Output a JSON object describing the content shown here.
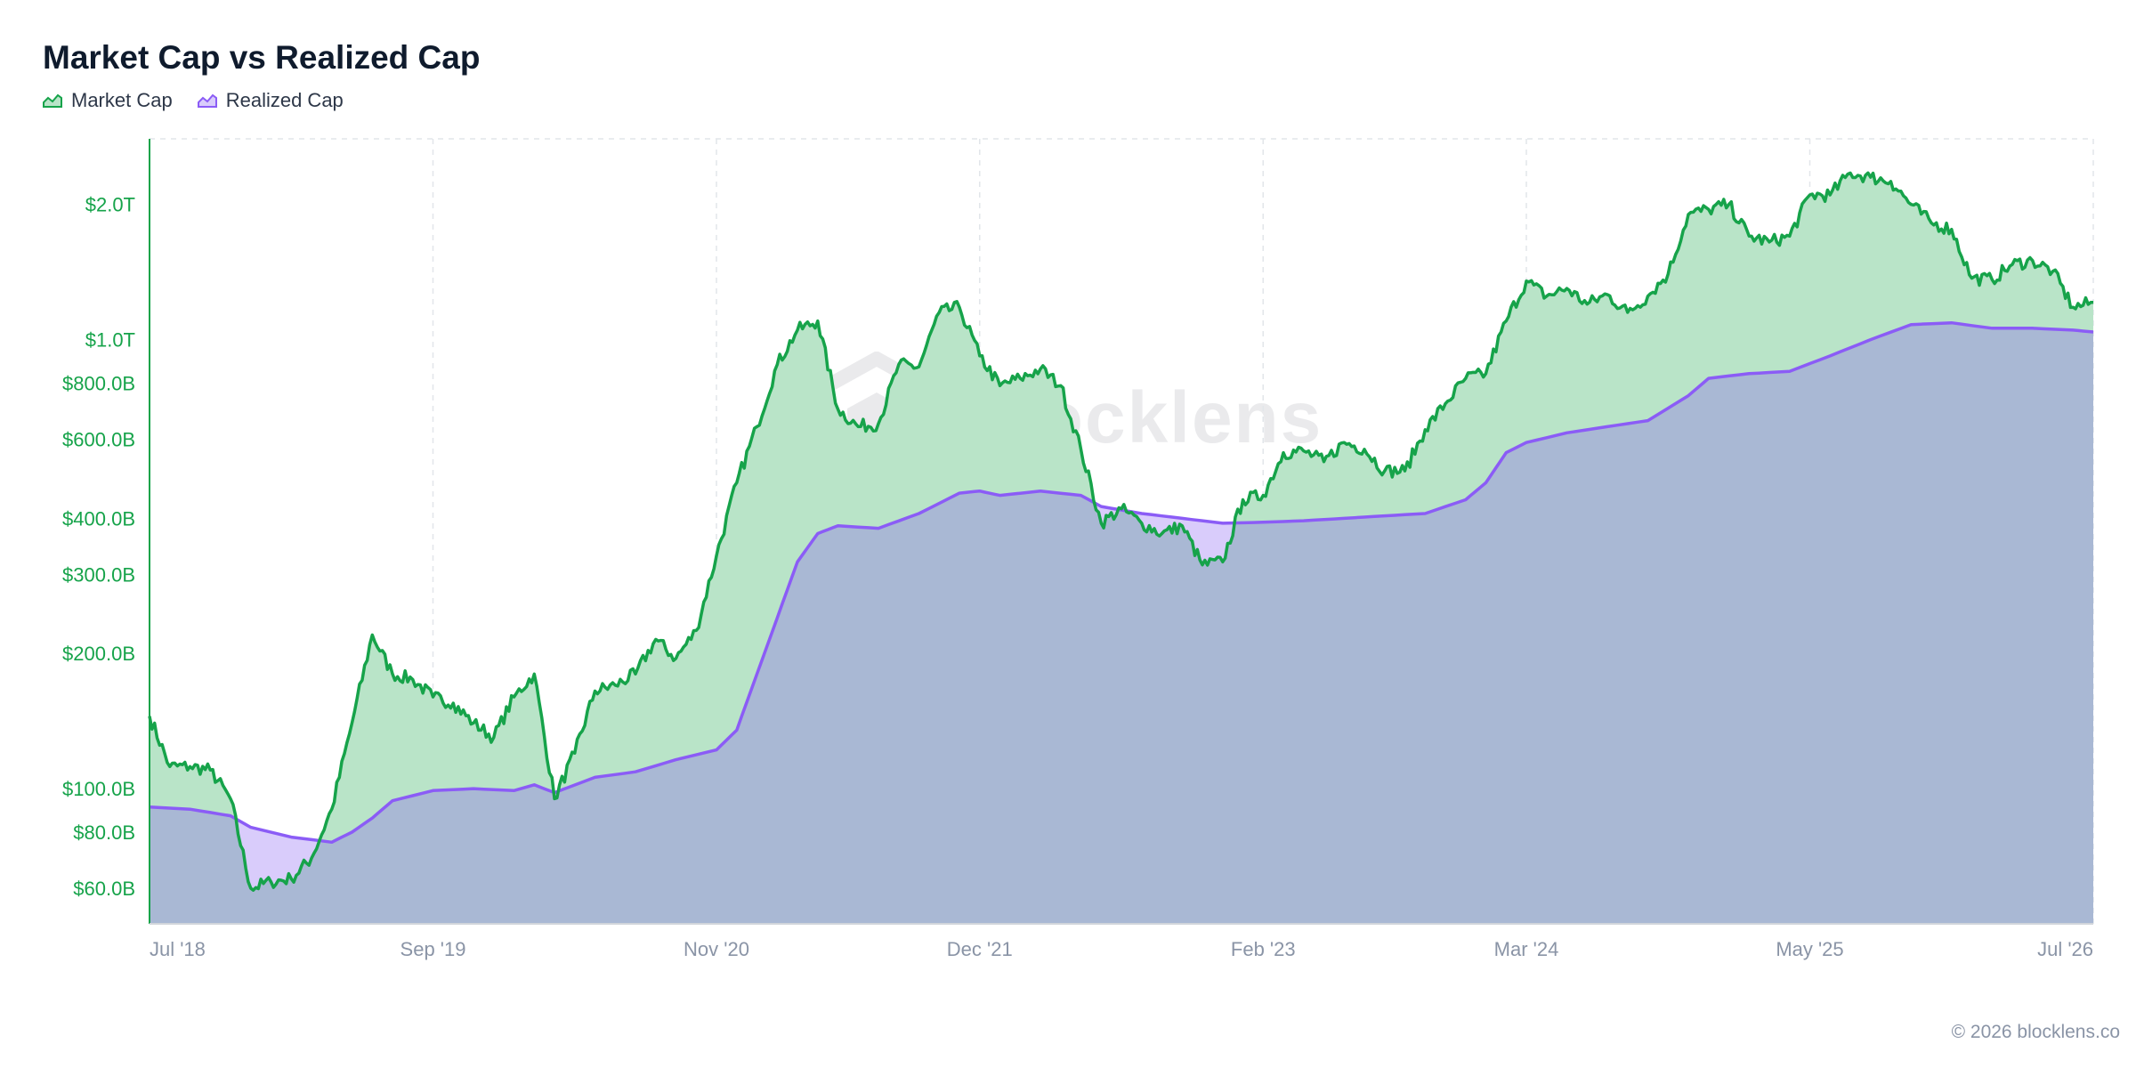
{
  "title": "Market Cap vs Realized Cap",
  "footer": "© 2026 blocklens.co",
  "watermark": "blocklens",
  "colors": {
    "market": "#16a34a",
    "market_fill": "#b9e4c8",
    "realized": "#8b5cf6",
    "realized_fill": "#d9ccfb",
    "overlap_fill": "#a9b8d4",
    "grid": "#e2e6ea"
  },
  "icons": {
    "legend_market": "area-chart-icon",
    "legend_realized": "area-chart-icon",
    "watermark": "hexagon-logo-icon"
  },
  "chart_data": {
    "type": "area",
    "title": "Market Cap vs Realized Cap",
    "y_scale": "log",
    "ylim": [
      50000000000,
      2800000000000
    ],
    "y_ticks": [
      {
        "value": 60000000000,
        "label": "$60.0B"
      },
      {
        "value": 80000000000,
        "label": "$80.0B"
      },
      {
        "value": 100000000000,
        "label": "$100.0B"
      },
      {
        "value": 200000000000,
        "label": "$200.0B"
      },
      {
        "value": 300000000000,
        "label": "$300.0B"
      },
      {
        "value": 400000000000,
        "label": "$400.0B"
      },
      {
        "value": 600000000000,
        "label": "$600.0B"
      },
      {
        "value": 800000000000,
        "label": "$800.0B"
      },
      {
        "value": 1000000000000,
        "label": "$1.0T"
      },
      {
        "value": 2000000000000,
        "label": "$2.0T"
      }
    ],
    "xlim": [
      "2018-07",
      "2026-07"
    ],
    "x_ticks": [
      {
        "value": "2018-07",
        "label": "Jul '18"
      },
      {
        "value": "2019-09",
        "label": "Sep '19"
      },
      {
        "value": "2020-11",
        "label": "Nov '20"
      },
      {
        "value": "2021-12",
        "label": "Dec '21"
      },
      {
        "value": "2023-02",
        "label": "Feb '23"
      },
      {
        "value": "2024-03",
        "label": "Mar '24"
      },
      {
        "value": "2025-05",
        "label": "May '25"
      },
      {
        "value": "2026-07",
        "label": "Jul '26"
      }
    ],
    "grid": true,
    "legend": "top-left",
    "series": [
      {
        "name": "Market Cap",
        "color": "#16a34a",
        "points": [
          [
            "2018-07",
            145
          ],
          [
            "2018-08",
            112
          ],
          [
            "2018-09",
            112
          ],
          [
            "2018-10",
            110
          ],
          [
            "2018-11",
            95
          ],
          [
            "2018-12",
            60
          ],
          [
            "2019-01",
            62
          ],
          [
            "2019-02",
            63
          ],
          [
            "2019-03",
            70
          ],
          [
            "2019-04",
            90
          ],
          [
            "2019-05",
            140
          ],
          [
            "2019-06",
            220
          ],
          [
            "2019-07",
            180
          ],
          [
            "2019-08",
            175
          ],
          [
            "2019-09",
            160
          ],
          [
            "2019-10",
            155
          ],
          [
            "2019-11",
            140
          ],
          [
            "2019-12",
            130
          ],
          [
            "2020-01",
            160
          ],
          [
            "2020-02",
            180
          ],
          [
            "2020-03",
            95
          ],
          [
            "2020-04",
            120
          ],
          [
            "2020-05",
            165
          ],
          [
            "2020-06",
            170
          ],
          [
            "2020-07",
            180
          ],
          [
            "2020-08",
            215
          ],
          [
            "2020-09",
            195
          ],
          [
            "2020-10",
            225
          ],
          [
            "2020-11",
            330
          ],
          [
            "2020-12",
            480
          ],
          [
            "2021-01",
            640
          ],
          [
            "2021-02",
            880
          ],
          [
            "2021-03",
            1050
          ],
          [
            "2021-04",
            1100
          ],
          [
            "2021-05",
            700
          ],
          [
            "2021-06",
            640
          ],
          [
            "2021-07",
            650
          ],
          [
            "2021-08",
            880
          ],
          [
            "2021-09",
            870
          ],
          [
            "2021-10",
            1150
          ],
          [
            "2021-11",
            1180
          ],
          [
            "2021-12",
            920
          ],
          [
            "2022-01",
            790
          ],
          [
            "2022-02",
            820
          ],
          [
            "2022-03",
            860
          ],
          [
            "2022-04",
            790
          ],
          [
            "2022-05",
            570
          ],
          [
            "2022-06",
            390
          ],
          [
            "2022-07",
            420
          ],
          [
            "2022-08",
            390
          ],
          [
            "2022-09",
            370
          ],
          [
            "2022-10",
            385
          ],
          [
            "2022-11",
            315
          ],
          [
            "2022-12",
            320
          ],
          [
            "2023-01",
            440
          ],
          [
            "2023-02",
            450
          ],
          [
            "2023-03",
            560
          ],
          [
            "2023-04",
            565
          ],
          [
            "2023-05",
            535
          ],
          [
            "2023-06",
            590
          ],
          [
            "2023-07",
            570
          ],
          [
            "2023-08",
            510
          ],
          [
            "2023-09",
            510
          ],
          [
            "2023-10",
            630
          ],
          [
            "2023-11",
            720
          ],
          [
            "2023-12",
            820
          ],
          [
            "2024-01",
            840
          ],
          [
            "2024-02",
            1100
          ],
          [
            "2024-03",
            1350
          ],
          [
            "2024-04",
            1250
          ],
          [
            "2024-05",
            1300
          ],
          [
            "2024-06",
            1200
          ],
          [
            "2024-07",
            1260
          ],
          [
            "2024-08",
            1150
          ],
          [
            "2024-09",
            1250
          ],
          [
            "2024-10",
            1400
          ],
          [
            "2024-11",
            1900
          ],
          [
            "2024-12",
            1950
          ],
          [
            "2025-01",
            2000
          ],
          [
            "2025-02",
            1700
          ],
          [
            "2025-03",
            1650
          ],
          [
            "2025-04",
            1700
          ],
          [
            "2025-05",
            2100
          ],
          [
            "2025-06",
            2100
          ],
          [
            "2025-07",
            2350
          ],
          [
            "2025-08",
            2300
          ],
          [
            "2025-09",
            2250
          ],
          [
            "2025-10",
            2000
          ],
          [
            "2025-11",
            1820
          ],
          [
            "2025-12",
            1760
          ],
          [
            "2026-01",
            1370
          ],
          [
            "2026-02",
            1360
          ],
          [
            "2026-03",
            1470
          ],
          [
            "2026-04",
            1500
          ],
          [
            "2026-05",
            1420
          ],
          [
            "2026-06",
            1180
          ],
          [
            "2026-07",
            1210
          ]
        ]
      },
      {
        "name": "Realized Cap",
        "color": "#8b5cf6",
        "points": [
          [
            "2018-07",
            91
          ],
          [
            "2018-09",
            90
          ],
          [
            "2018-11",
            87
          ],
          [
            "2018-12",
            82
          ],
          [
            "2019-02",
            78
          ],
          [
            "2019-04",
            76
          ],
          [
            "2019-05",
            80
          ],
          [
            "2019-06",
            86
          ],
          [
            "2019-07",
            94
          ],
          [
            "2019-09",
            99
          ],
          [
            "2019-11",
            100
          ],
          [
            "2020-01",
            99
          ],
          [
            "2020-02",
            102
          ],
          [
            "2020-03",
            98
          ],
          [
            "2020-05",
            106
          ],
          [
            "2020-07",
            109
          ],
          [
            "2020-09",
            116
          ],
          [
            "2020-11",
            122
          ],
          [
            "2020-12",
            135
          ],
          [
            "2021-01",
            180
          ],
          [
            "2021-02",
            240
          ],
          [
            "2021-03",
            320
          ],
          [
            "2021-04",
            370
          ],
          [
            "2021-05",
            385
          ],
          [
            "2021-07",
            380
          ],
          [
            "2021-09",
            410
          ],
          [
            "2021-11",
            455
          ],
          [
            "2021-12",
            460
          ],
          [
            "2022-01",
            450
          ],
          [
            "2022-03",
            460
          ],
          [
            "2022-05",
            450
          ],
          [
            "2022-06",
            425
          ],
          [
            "2022-08",
            410
          ],
          [
            "2022-10",
            400
          ],
          [
            "2022-12",
            390
          ],
          [
            "2023-02",
            392
          ],
          [
            "2023-04",
            395
          ],
          [
            "2023-06",
            400
          ],
          [
            "2023-08",
            405
          ],
          [
            "2023-10",
            410
          ],
          [
            "2023-12",
            440
          ],
          [
            "2024-01",
            480
          ],
          [
            "2024-02",
            560
          ],
          [
            "2024-03",
            590
          ],
          [
            "2024-05",
            620
          ],
          [
            "2024-07",
            640
          ],
          [
            "2024-09",
            660
          ],
          [
            "2024-11",
            750
          ],
          [
            "2024-12",
            820
          ],
          [
            "2025-02",
            840
          ],
          [
            "2025-04",
            850
          ],
          [
            "2025-06",
            920
          ],
          [
            "2025-08",
            1000
          ],
          [
            "2025-10",
            1080
          ],
          [
            "2025-12",
            1090
          ],
          [
            "2026-02",
            1060
          ],
          [
            "2026-04",
            1060
          ],
          [
            "2026-06",
            1050
          ],
          [
            "2026-07",
            1040
          ]
        ],
        "unit_note_ignored": true
      }
    ]
  }
}
